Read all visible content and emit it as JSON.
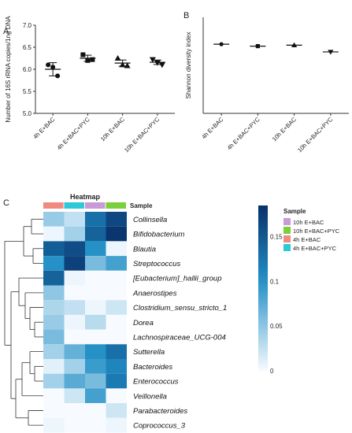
{
  "panels": {
    "a": "A",
    "b": "B",
    "c": "C"
  },
  "chart_data": [
    {
      "type": "scatter",
      "panel": "A",
      "ylabel": "Number of 16S rRNA copies/1ng DNA",
      "xlabel": "",
      "ylim": [
        5.0,
        7.0
      ],
      "yticks": [
        "5.0",
        "5.5",
        "6.0",
        "6.5",
        "7.0"
      ],
      "categories": [
        "4h E+BAC",
        "4h E+BAC+PYC",
        "10h E+BAC",
        "10h E+BAC+PYC"
      ],
      "markers": [
        "circle",
        "square",
        "triangle",
        "triangle-down"
      ],
      "points": [
        [
          6.1,
          6.05,
          5.85
        ],
        [
          6.33,
          6.2,
          6.22
        ],
        [
          6.25,
          6.1,
          6.08
        ],
        [
          6.22,
          6.15,
          6.1
        ]
      ],
      "means": [
        6.0,
        6.25,
        6.14,
        6.16
      ],
      "errors": [
        0.15,
        0.07,
        0.07,
        0.05
      ],
      "grid": false
    },
    {
      "type": "scatter",
      "panel": "B",
      "ylabel": "Shannon diversity index",
      "xlabel": "",
      "categories": [
        "4h E+BAC",
        "4h E+BAC+PYC",
        "10h E+BAC",
        "10h E+BAC+PYC"
      ],
      "markers": [
        "circle",
        "square",
        "triangle",
        "triangle-down"
      ],
      "values": [
        3.6,
        3.5,
        3.55,
        3.2
      ],
      "ylim": [
        0,
        5
      ],
      "grid": false
    },
    {
      "type": "heatmap",
      "panel": "C",
      "title": "Heatmap",
      "sample_label": "Sample",
      "rows": [
        "Collinsella",
        "Bifidobacterium",
        "Blautia",
        "Streptococcus",
        "[Eubacterium]_hallii_group",
        "Anaerostipes",
        "Clostridium_sensu_stricto_1",
        "Dorea",
        "Lachnospiraceae_UCG-004",
        "Sutterella",
        "Bacteroides",
        "Enterococcus",
        "Veillonella",
        "Parabacteroides",
        "Coprococcus_3"
      ],
      "columns": [
        "4h E+BAC",
        "4h E+BAC+PYC",
        "10h E+BAC",
        "10h E+BAC+PYC"
      ],
      "column_colors": [
        "#f08a80",
        "#2ec8d6",
        "#c89ad6",
        "#7ccf3c"
      ],
      "values": [
        [
          0.045,
          0.025,
          0.13,
          0.165
        ],
        [
          0.005,
          0.04,
          0.14,
          0.18
        ],
        [
          0.145,
          0.16,
          0.1,
          0.005
        ],
        [
          0.1,
          0.17,
          0.06,
          0.085
        ],
        [
          0.14,
          0.005,
          0.0,
          0.0
        ],
        [
          0.05,
          0.0,
          0.0,
          0.0
        ],
        [
          0.035,
          0.025,
          0.005,
          0.02
        ],
        [
          0.045,
          0.005,
          0.03,
          0.0
        ],
        [
          0.06,
          0.0,
          0.0,
          0.0
        ],
        [
          0.04,
          0.07,
          0.1,
          0.13
        ],
        [
          0.01,
          0.04,
          0.09,
          0.11
        ],
        [
          0.04,
          0.075,
          0.06,
          0.12
        ],
        [
          0.0,
          0.02,
          0.085,
          0.0
        ],
        [
          0.0,
          0.0,
          0.0,
          0.02
        ],
        [
          0.005,
          0.0,
          0.0,
          0.005
        ]
      ],
      "scale_ticks": [
        "0.15",
        "0.1",
        "0.05",
        "0"
      ],
      "scale_values": [
        0.15,
        0.1,
        0.05,
        0
      ],
      "scale_max": 0.185,
      "legend_title": "Sample",
      "legend_items": [
        {
          "label": "10h E+BAC",
          "color": "#c89ad6"
        },
        {
          "label": "10h E+BAC+PYC",
          "color": "#7ccf3c"
        },
        {
          "label": "4h E+BAC",
          "color": "#f08a80"
        },
        {
          "label": "4h E+BAC+PYC",
          "color": "#2ec8d6"
        }
      ]
    }
  ]
}
